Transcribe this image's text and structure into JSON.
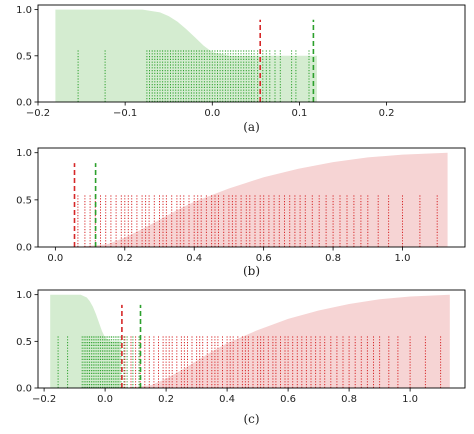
{
  "colors": {
    "green_fill": "#d4ecd0",
    "red_fill": "#f6d4d4",
    "green_lines": "#2ca02c",
    "red_lines": "#d62728",
    "axis": "#000000"
  },
  "chart_data": [
    {
      "type": "area",
      "caption": "(a)",
      "xlim": [
        -0.2,
        0.29
      ],
      "ylim": [
        0,
        1.05
      ],
      "xticks": [
        -0.2,
        -0.1,
        0.0,
        0.1,
        0.2
      ],
      "xtick_labels": [
        "−0.2",
        "−0.1",
        "0.0",
        "0.1",
        "0.2"
      ],
      "yticks": [
        0.0,
        0.5,
        1.0
      ],
      "ytick_labels": [
        "0.0",
        "0.5",
        "1.0"
      ],
      "areas": [
        {
          "color": "green",
          "x": [
            -0.18,
            -0.08,
            -0.06,
            -0.05,
            -0.04,
            -0.03,
            -0.02,
            -0.01,
            0.0,
            0.02,
            0.05,
            0.12
          ],
          "y": [
            1.0,
            1.0,
            0.97,
            0.93,
            0.87,
            0.79,
            0.7,
            0.61,
            0.54,
            0.5,
            0.5,
            0.5
          ]
        }
      ],
      "rugs": [
        {
          "color": "green",
          "height": 0.56,
          "x": [
            -0.154,
            -0.123,
            -0.075,
            -0.072,
            -0.069,
            -0.066,
            -0.063,
            -0.06,
            -0.057,
            -0.054,
            -0.051,
            -0.048,
            -0.045,
            -0.042,
            -0.039,
            -0.036,
            -0.033,
            -0.03,
            -0.027,
            -0.024,
            -0.021,
            -0.018,
            -0.015,
            -0.012,
            -0.009,
            -0.006,
            -0.003,
            0.0,
            0.003,
            0.006,
            0.009,
            0.012,
            0.015,
            0.018,
            0.021,
            0.024,
            0.027,
            0.03,
            0.033,
            0.036,
            0.039,
            0.042,
            0.045,
            0.048,
            0.052,
            0.058,
            0.062,
            0.066,
            0.072,
            0.078,
            0.091,
            0.096,
            0.111
          ]
        }
      ],
      "markers": [
        {
          "color": "red",
          "x": 0.055,
          "height": 0.89
        },
        {
          "color": "green",
          "x": 0.116,
          "height": 0.89
        }
      ]
    },
    {
      "type": "area",
      "caption": "(b)",
      "xlim": [
        -0.05,
        1.18
      ],
      "ylim": [
        0,
        1.05
      ],
      "xticks": [
        0.0,
        0.2,
        0.4,
        0.6,
        0.8,
        1.0
      ],
      "xtick_labels": [
        "0.0",
        "0.2",
        "0.4",
        "0.6",
        "0.8",
        "1.0"
      ],
      "yticks": [
        0.0,
        0.5,
        1.0
      ],
      "ytick_labels": [
        "0.0",
        "0.5",
        "1.0"
      ],
      "areas": [
        {
          "color": "red",
          "x": [
            0.06,
            0.15,
            0.2,
            0.25,
            0.3,
            0.35,
            0.4,
            0.45,
            0.5,
            0.55,
            0.6,
            0.7,
            0.8,
            0.9,
            1.0,
            1.13
          ],
          "y": [
            0.0,
            0.03,
            0.1,
            0.19,
            0.29,
            0.39,
            0.48,
            0.55,
            0.62,
            0.68,
            0.74,
            0.83,
            0.9,
            0.95,
            0.98,
            1.0
          ]
        }
      ],
      "rugs": [
        {
          "color": "red",
          "height": 0.56,
          "x": [
            0.065,
            0.085,
            0.1,
            0.115,
            0.13,
            0.145,
            0.16,
            0.175,
            0.19,
            0.2,
            0.21,
            0.22,
            0.235,
            0.25,
            0.26,
            0.27,
            0.285,
            0.3,
            0.31,
            0.32,
            0.335,
            0.35,
            0.36,
            0.37,
            0.385,
            0.4,
            0.41,
            0.42,
            0.435,
            0.45,
            0.46,
            0.47,
            0.485,
            0.5,
            0.51,
            0.52,
            0.535,
            0.55,
            0.56,
            0.575,
            0.59,
            0.6,
            0.615,
            0.63,
            0.645,
            0.66,
            0.675,
            0.69,
            0.705,
            0.72,
            0.74,
            0.76,
            0.78,
            0.8,
            0.82,
            0.84,
            0.86,
            0.88,
            0.9,
            0.93,
            0.96,
            1.0,
            1.05,
            1.1
          ]
        }
      ],
      "markers": [
        {
          "color": "red",
          "x": 0.055,
          "height": 0.89
        },
        {
          "color": "green",
          "x": 0.116,
          "height": 0.89
        }
      ]
    },
    {
      "type": "area",
      "caption": "(c)",
      "xlim": [
        -0.22,
        1.18
      ],
      "ylim": [
        0,
        1.05
      ],
      "xticks": [
        -0.2,
        0.0,
        0.2,
        0.4,
        0.6,
        0.8,
        1.0
      ],
      "xtick_labels": [
        "−0.2",
        "0.0",
        "0.2",
        "0.4",
        "0.6",
        "0.8",
        "1.0"
      ],
      "yticks": [
        0.0,
        0.5,
        1.0
      ],
      "ytick_labels": [
        "0.0",
        "0.5",
        "1.0"
      ],
      "areas": [
        {
          "color": "green",
          "x": [
            -0.18,
            -0.08,
            -0.06,
            -0.05,
            -0.04,
            -0.03,
            -0.02,
            -0.01,
            0.0,
            0.02,
            0.05
          ],
          "y": [
            1.0,
            1.0,
            0.97,
            0.93,
            0.87,
            0.79,
            0.7,
            0.61,
            0.54,
            0.5,
            0.5
          ]
        },
        {
          "color": "red",
          "x": [
            0.06,
            0.15,
            0.2,
            0.25,
            0.3,
            0.35,
            0.4,
            0.45,
            0.5,
            0.55,
            0.6,
            0.7,
            0.8,
            0.9,
            1.0,
            1.13
          ],
          "y": [
            0.0,
            0.03,
            0.1,
            0.19,
            0.29,
            0.39,
            0.48,
            0.55,
            0.62,
            0.68,
            0.74,
            0.83,
            0.9,
            0.95,
            0.98,
            1.0
          ]
        }
      ],
      "rugs": [
        {
          "color": "green",
          "height": 0.56,
          "x": [
            -0.154,
            -0.123,
            -0.075,
            -0.069,
            -0.063,
            -0.057,
            -0.051,
            -0.045,
            -0.039,
            -0.033,
            -0.027,
            -0.021,
            -0.015,
            -0.009,
            -0.003,
            0.003,
            0.009,
            0.015,
            0.021,
            0.027,
            0.033,
            0.039,
            0.045,
            0.052,
            0.062,
            0.072,
            0.091,
            0.111
          ]
        },
        {
          "color": "red",
          "height": 0.56,
          "x": [
            0.065,
            0.085,
            0.1,
            0.115,
            0.13,
            0.145,
            0.16,
            0.175,
            0.19,
            0.2,
            0.21,
            0.22,
            0.235,
            0.25,
            0.26,
            0.27,
            0.285,
            0.3,
            0.31,
            0.32,
            0.335,
            0.35,
            0.36,
            0.37,
            0.385,
            0.4,
            0.41,
            0.42,
            0.435,
            0.45,
            0.46,
            0.47,
            0.485,
            0.5,
            0.51,
            0.52,
            0.535,
            0.55,
            0.56,
            0.575,
            0.59,
            0.6,
            0.615,
            0.63,
            0.645,
            0.66,
            0.675,
            0.69,
            0.705,
            0.72,
            0.74,
            0.76,
            0.78,
            0.8,
            0.82,
            0.84,
            0.86,
            0.88,
            0.9,
            0.93,
            0.96,
            1.0,
            1.05,
            1.1
          ]
        }
      ],
      "markers": [
        {
          "color": "red",
          "x": 0.055,
          "height": 0.89
        },
        {
          "color": "green",
          "x": 0.116,
          "height": 0.89
        }
      ]
    }
  ]
}
